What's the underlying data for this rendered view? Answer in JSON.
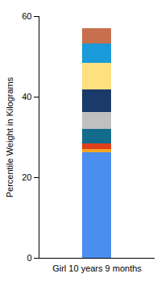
{
  "chart_data": {
    "type": "bar",
    "stacked": true,
    "categories": [
      "Girl 10 years 9 months"
    ],
    "y_label": "Percentile Weight in Kilograms",
    "series": [
      {
        "color": "#4a8ef0",
        "values": [
          26.2
        ]
      },
      {
        "color": "#f5a623",
        "values": [
          0.8
        ]
      },
      {
        "color": "#e0401c",
        "values": [
          1.4
        ]
      },
      {
        "color": "#146c8c",
        "values": [
          3.6
        ]
      },
      {
        "color": "#c0c0c0",
        "values": [
          4.2
        ]
      },
      {
        "color": "#1a3a6b",
        "values": [
          5.6
        ]
      },
      {
        "color": "#ffe080",
        "values": [
          6.6
        ]
      },
      {
        "color": "#1a9ad8",
        "values": [
          4.8
        ]
      },
      {
        "color": "#c8704e",
        "values": [
          3.8
        ]
      }
    ],
    "ylim": [
      0,
      60
    ],
    "yticks": [
      0,
      20,
      40,
      60
    ],
    "grid": false
  }
}
